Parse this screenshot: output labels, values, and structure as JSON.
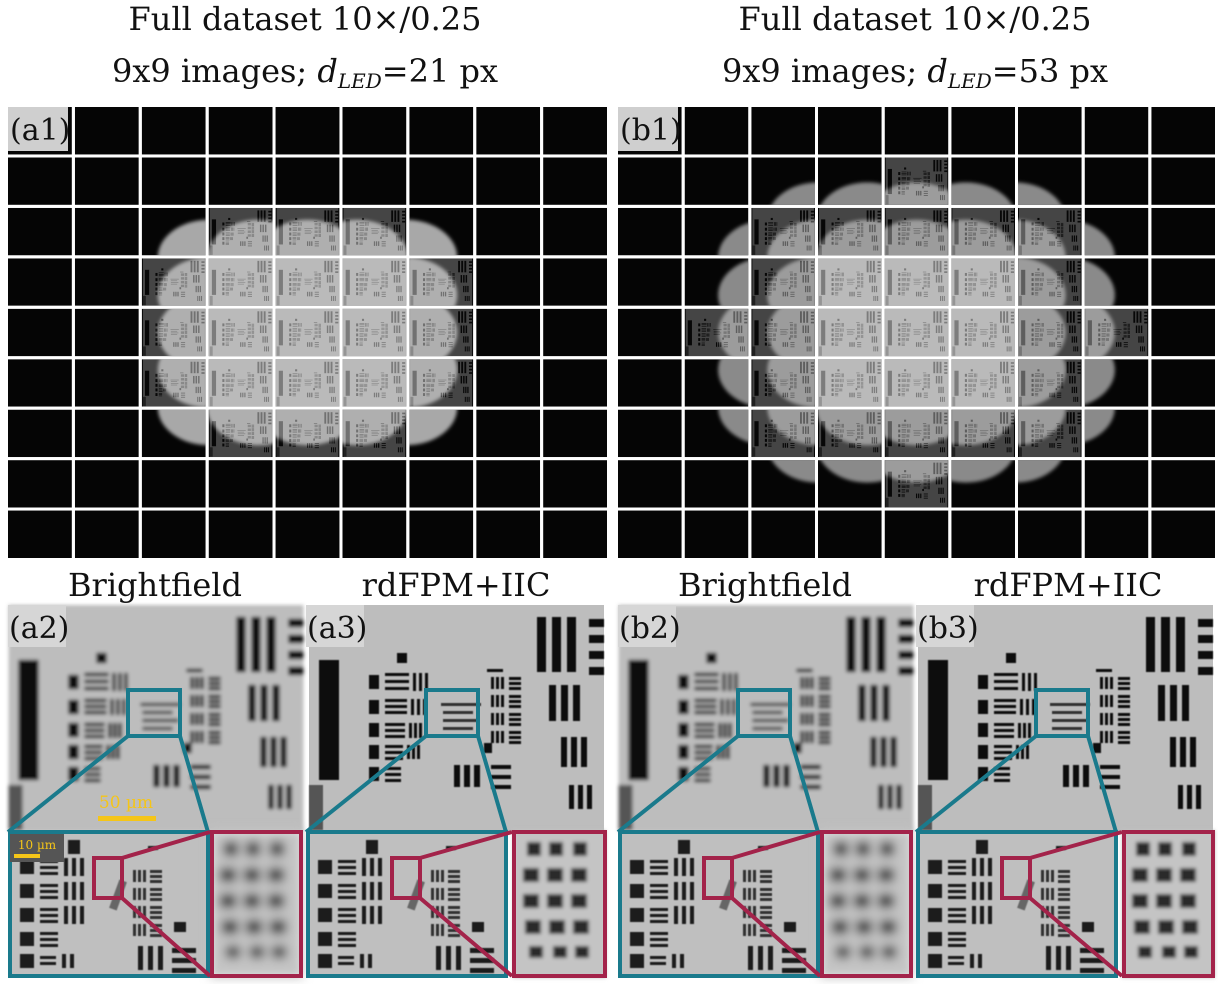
{
  "left": {
    "title": "Full dataset 10×/0.25",
    "subtitle": {
      "prefix": "9x9 images; ",
      "symbol": "d",
      "subscript": "LED",
      "suffix": "=21 px"
    },
    "grid_label": "(a1)",
    "columns": [
      "Brightfield",
      "rdFPM+IIC"
    ],
    "panel_labels": [
      "(a2)",
      "(a3)"
    ],
    "scale_bars": [
      "50 µm",
      "10 µm"
    ]
  },
  "right": {
    "title": "Full dataset 10×/0.25",
    "subtitle": {
      "prefix": "9x9 images; ",
      "symbol": "d",
      "subscript": "LED",
      "suffix": "=53 px"
    },
    "grid_label": "(b1)",
    "columns": [
      "Brightfield",
      "rdFPM+IIC"
    ],
    "panel_labels": [
      "(b2)",
      "(b3)"
    ]
  }
}
